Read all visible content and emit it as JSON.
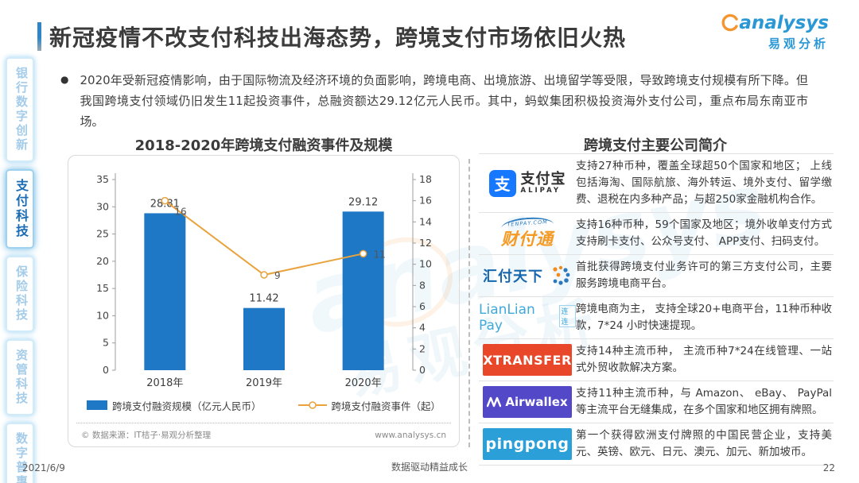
{
  "slide": {
    "title": "新冠疫情不改支付科技出海态势，跨境支付市场依旧火热",
    "footer": {
      "date": "2021/6/9",
      "center": "数据驱动精益成长",
      "page": "22"
    }
  },
  "brand": {
    "name_en": "analysys",
    "name_cn": "易观分析"
  },
  "watermark": {
    "text_en": "analysys",
    "text_cn": "易观分析"
  },
  "sidebar": {
    "items": [
      {
        "label": "银行数字创新",
        "active": false
      },
      {
        "label": "支付科技",
        "active": true
      },
      {
        "label": "保险科技",
        "active": false
      },
      {
        "label": "资管科技",
        "active": false
      },
      {
        "label": "数字普惠",
        "active": false
      }
    ]
  },
  "bullet": {
    "text": "2020年受新冠疫情影响，由于国际物流及经济环境的负面影响，跨境电商、出境旅游、出境留学等受限，导致跨境支付规模有所下降。但我国跨境支付领域仍旧发生11起投资事件，总融资额达29.12亿元人民币。其中，蚂蚁集团积极投资海外支付公司，重点布局东南亚市场。"
  },
  "chart": {
    "title": "2018-2020年跨境支付融资事件及规模",
    "source_left": "© 数据来源：IT桔子·易观分析整理",
    "source_right": "www.analysys.cn"
  },
  "chart_data": {
    "type": "bar",
    "subtype": "bar+line dual axis",
    "title": "2018-2020年跨境支付融资事件及规模",
    "categories": [
      "2018年",
      "2019年",
      "2020年"
    ],
    "series": [
      {
        "name": "跨境支付融资规模（亿元人民币）",
        "type": "bar",
        "axis": "left",
        "values": [
          28.81,
          11.42,
          29.12
        ],
        "color": "#1e78c6"
      },
      {
        "name": "跨境支付融资事件（起）",
        "type": "line",
        "axis": "right",
        "values": [
          16,
          9,
          11
        ],
        "color": "#e9a33d"
      }
    ],
    "left_axis": {
      "min": 0,
      "max": 35,
      "step": 5
    },
    "right_axis": {
      "min": 0,
      "max": 18,
      "step": 2
    },
    "grid": false,
    "legend_position": "bottom"
  },
  "companies": {
    "title": "跨境支付主要公司简介",
    "rows": [
      {
        "logo": "alipay",
        "logo_badge": "支",
        "logo_text": "支付宝",
        "logo_sub": "ALIPAY",
        "desc": "支持27种币种，覆盖全球超50个国家和地区； 上线包括海淘、国际航旅、海外转运、境外支付、留学缴费、退税在内多种产品；与超250家金融机构合作。"
      },
      {
        "logo": "tenpay",
        "logo_text": "财付通",
        "logo_sub": "TENPAY.COM",
        "desc": "支持16种币种，59个国家及地区；境外收单支付方式支持刷卡支付、公众号支付、 APP支付、扫码支付。"
      },
      {
        "logo": "huifu",
        "logo_text": "汇付天下",
        "desc": "首批获得跨境支付业务许可的第三方支付公司，主要服务跨境电商平台。"
      },
      {
        "logo": "lianlian",
        "logo_text": "LianLian Pay",
        "logo_sub": "连连",
        "desc": "跨境电商为主， 支持全球20+电商平台，11种币种收款，7*24 小时快速提现。"
      },
      {
        "logo": "xtransfer",
        "logo_text": "XTRANSFER",
        "desc": "支持14种主流币种， 主流币种7*24在线管理、一站式外贸收款解决方案。"
      },
      {
        "logo": "airwallex",
        "logo_text": "Airwallex",
        "desc": "支持11种主流币种，与 Amazon、 eBay、 PayPal等主流平台无缝集成，在多个国家和地区拥有牌照。"
      },
      {
        "logo": "pingpong",
        "logo_text": "pingpong",
        "desc": "第一个获得欧洲支付牌照的中国民营企业，支持美元、英镑、欧元、日元、澳元、加元、新加坡币。"
      }
    ]
  }
}
